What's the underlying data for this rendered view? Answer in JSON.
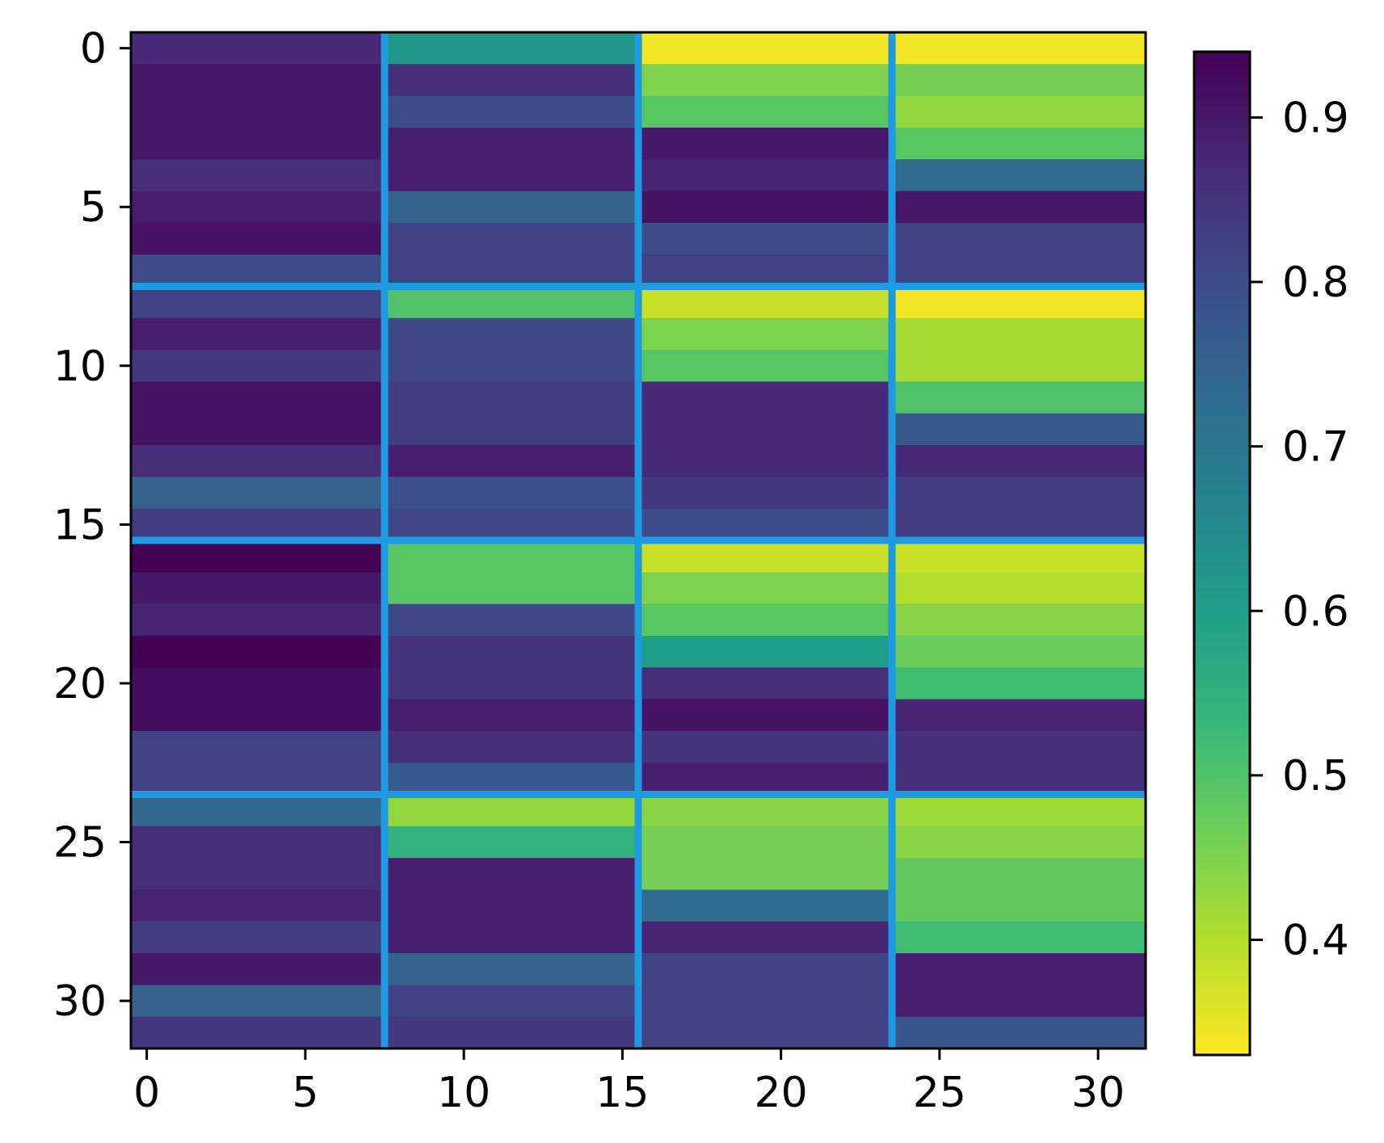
{
  "chart_data": {
    "type": "heatmap",
    "title": "",
    "xlabel": "",
    "ylabel": "",
    "x_range": [
      0,
      31
    ],
    "y_range": [
      0,
      31
    ],
    "x_ticks": [
      "0",
      "5",
      "10",
      "15",
      "20",
      "25",
      "30"
    ],
    "y_ticks": [
      "0",
      "5",
      "10",
      "15",
      "20",
      "25",
      "30"
    ],
    "colormap": "viridis_r",
    "colorbar": {
      "range": [
        0.33,
        0.94
      ],
      "ticks": [
        "0.4",
        "0.5",
        "0.6",
        "0.7",
        "0.8",
        "0.9"
      ],
      "tick_values": [
        0.4,
        0.5,
        0.6,
        0.7,
        0.8,
        0.9
      ]
    },
    "grid": true,
    "grid_color": "#1e9be0",
    "block_size": 8,
    "column_blocks": [
      [
        0.87,
        0.9,
        0.9,
        0.9,
        0.86,
        0.89,
        0.91,
        0.8,
        0.82,
        0.89,
        0.84,
        0.91,
        0.91,
        0.86,
        0.75,
        0.83,
        0.94,
        0.9,
        0.88,
        0.94,
        0.92,
        0.92,
        0.82,
        0.82,
        0.74,
        0.86,
        0.86,
        0.88,
        0.83,
        0.9,
        0.75,
        0.84
      ],
      [
        0.62,
        0.86,
        0.8,
        0.89,
        0.89,
        0.75,
        0.82,
        0.82,
        0.5,
        0.81,
        0.81,
        0.83,
        0.83,
        0.89,
        0.79,
        0.81,
        0.49,
        0.49,
        0.81,
        0.85,
        0.85,
        0.89,
        0.86,
        0.77,
        0.43,
        0.55,
        0.89,
        0.89,
        0.89,
        0.75,
        0.82,
        0.84
      ],
      [
        0.34,
        0.45,
        0.49,
        0.9,
        0.88,
        0.91,
        0.8,
        0.82,
        0.38,
        0.45,
        0.49,
        0.87,
        0.87,
        0.87,
        0.84,
        0.8,
        0.38,
        0.45,
        0.49,
        0.6,
        0.86,
        0.91,
        0.85,
        0.89,
        0.44,
        0.46,
        0.46,
        0.73,
        0.88,
        0.82,
        0.82,
        0.82
      ],
      [
        0.34,
        0.46,
        0.43,
        0.49,
        0.73,
        0.9,
        0.82,
        0.82,
        0.34,
        0.41,
        0.41,
        0.5,
        0.77,
        0.87,
        0.83,
        0.83,
        0.38,
        0.4,
        0.44,
        0.47,
        0.52,
        0.88,
        0.86,
        0.86,
        0.42,
        0.44,
        0.48,
        0.48,
        0.52,
        0.89,
        0.89,
        0.78
      ]
    ]
  }
}
